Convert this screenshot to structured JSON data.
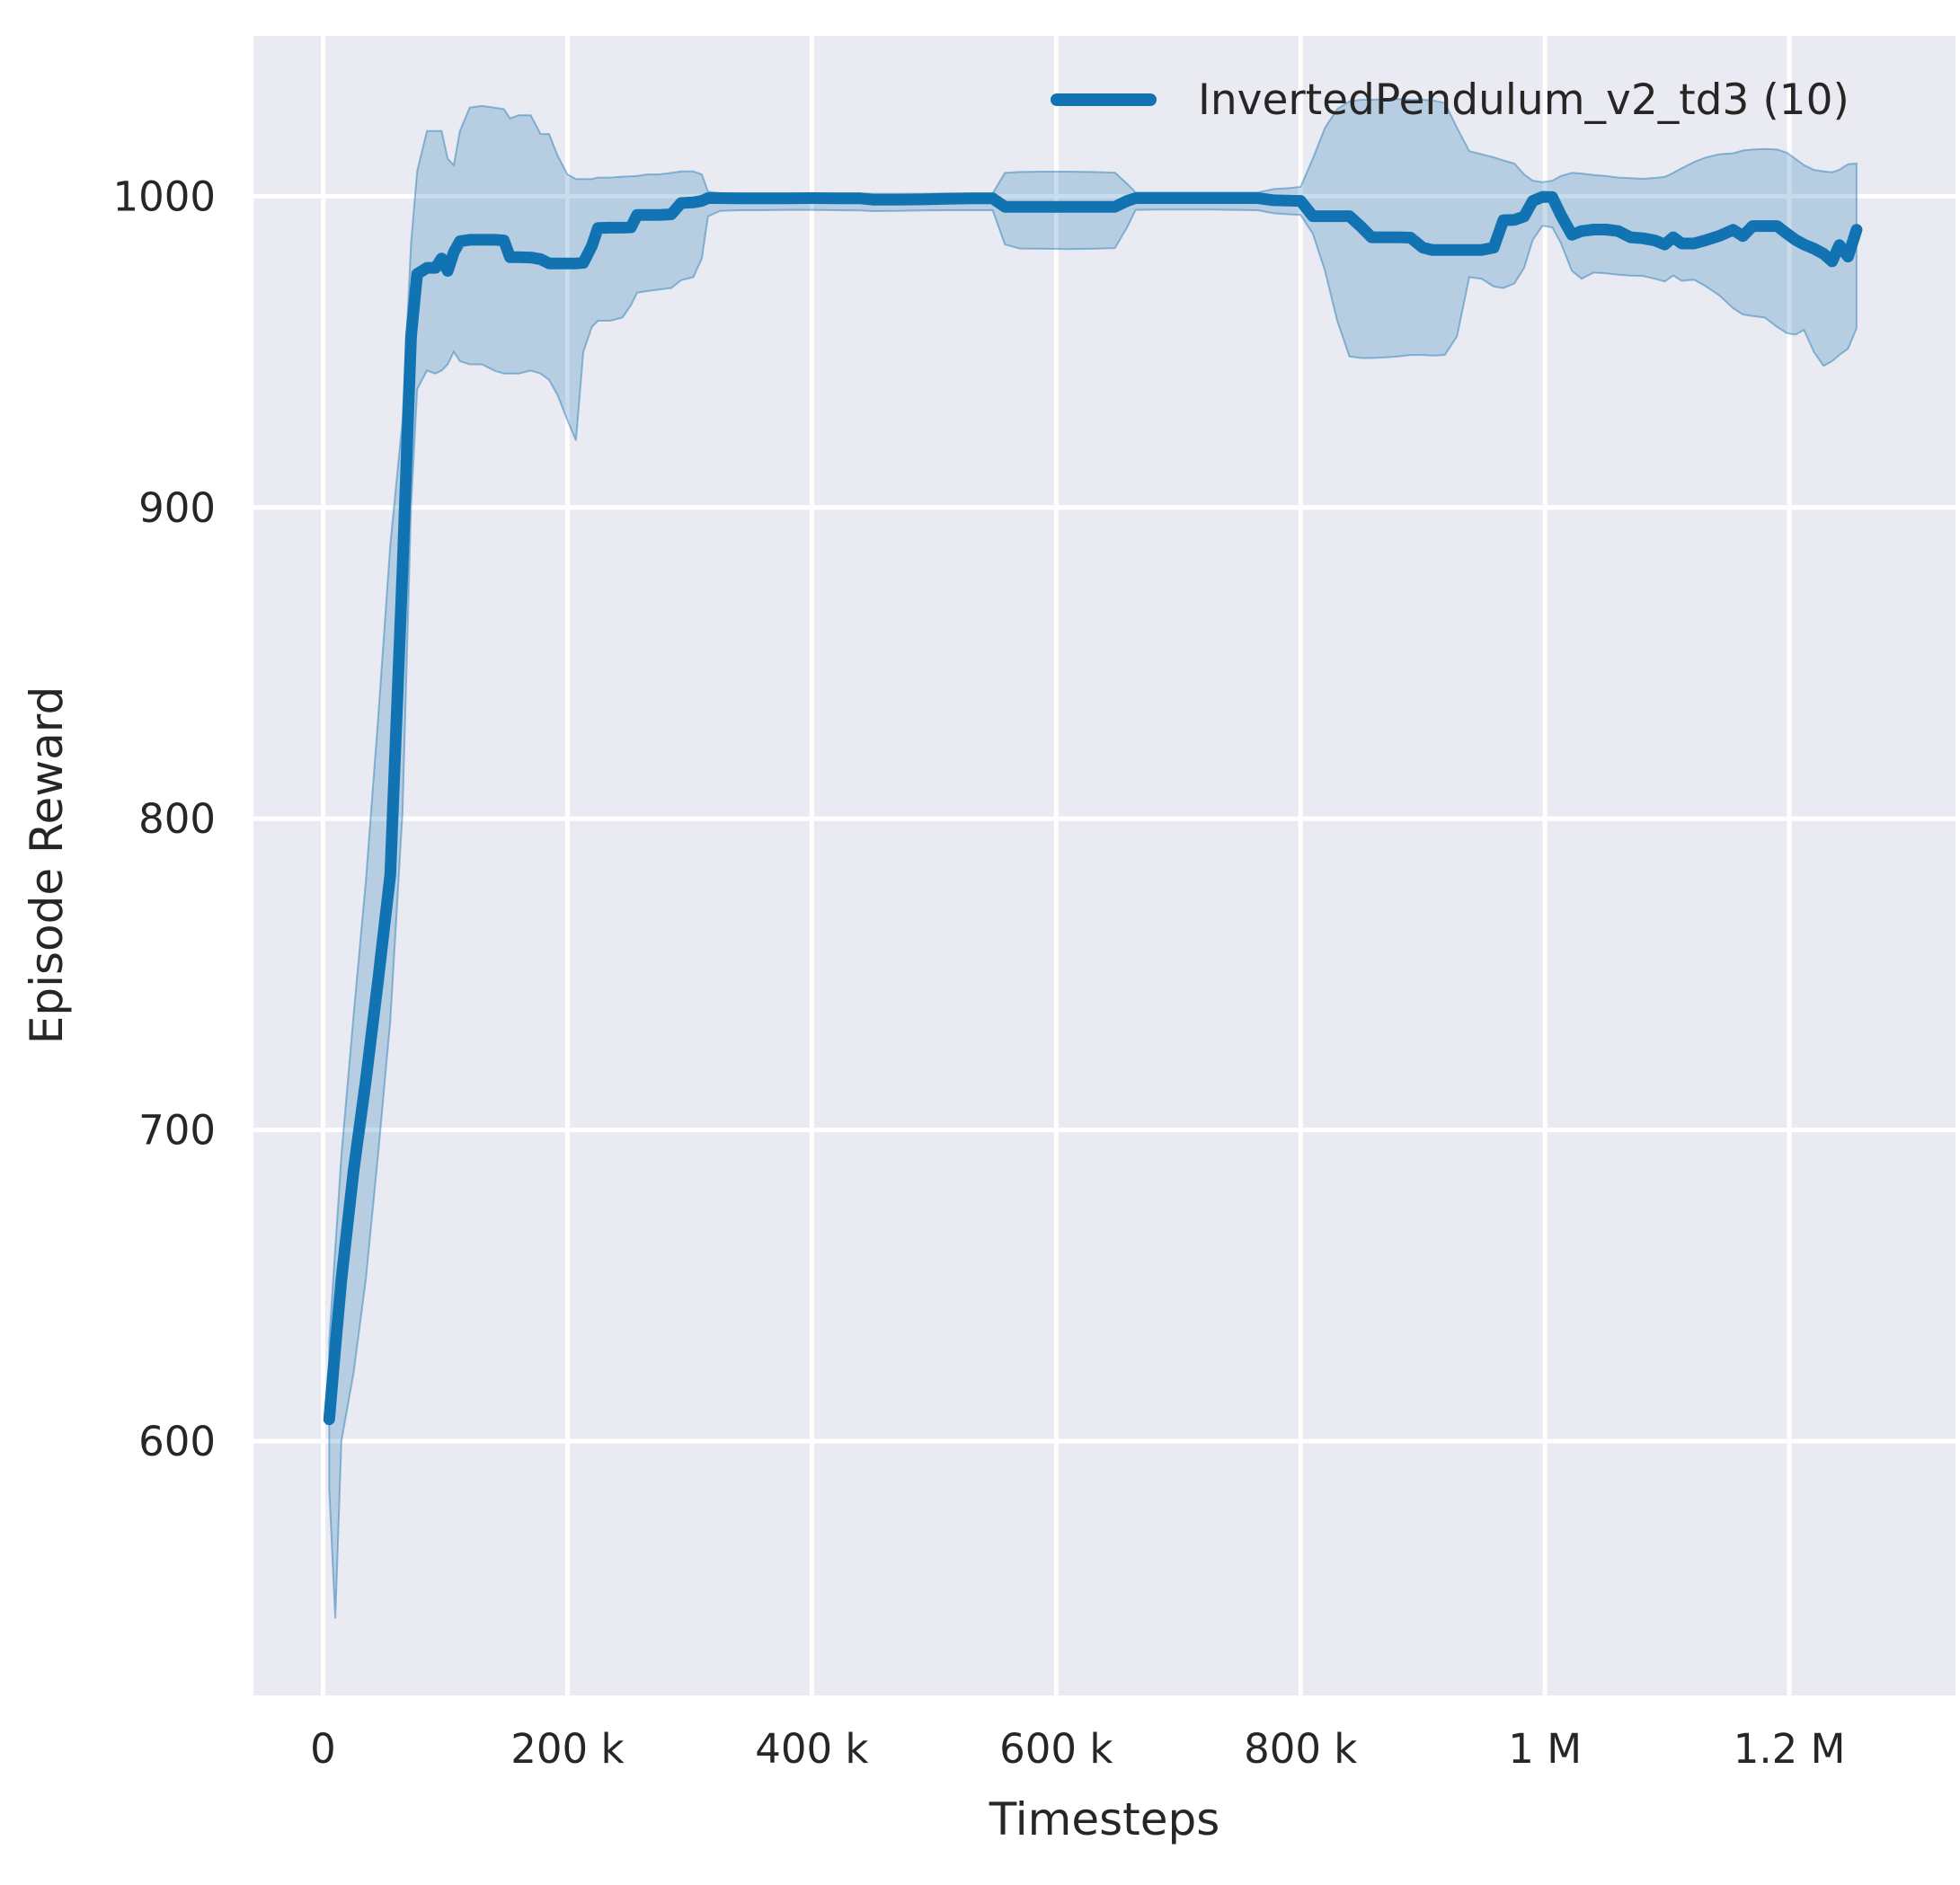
{
  "figure": {
    "xlabel": "Timesteps",
    "ylabel": "Episode Reward",
    "legend_label": "InvertedPendulum_v2_td3 (10)"
  },
  "colors": {
    "line": "#1273b2",
    "band": "rgba(31,119,180,0.25)",
    "plot_bg": "#eaeaf2",
    "grid": "#ffffff",
    "text": "#262626",
    "page_bg": "#ffffff"
  },
  "chart_data": {
    "type": "line",
    "title": "",
    "xlabel": "Timesteps",
    "ylabel": "Episode Reward",
    "legend_position": "upper right",
    "grid": true,
    "xlim": [
      -57000,
      1336000
    ],
    "ylim": [
      518.3,
      1051.5
    ],
    "x_ticks": [
      {
        "value": 0,
        "label": "0"
      },
      {
        "value": 200000,
        "label": "200 k"
      },
      {
        "value": 400000,
        "label": "400 k"
      },
      {
        "value": 600000,
        "label": "600 k"
      },
      {
        "value": 800000,
        "label": "800 k"
      },
      {
        "value": 1000000,
        "label": "1 M"
      },
      {
        "value": 1200000,
        "label": "1.2 M"
      }
    ],
    "y_ticks": [
      {
        "value": 600,
        "label": "600"
      },
      {
        "value": 700,
        "label": "700"
      },
      {
        "value": 800,
        "label": "800"
      },
      {
        "value": 900,
        "label": "900"
      },
      {
        "value": 1000,
        "label": "1000"
      }
    ],
    "series": [
      {
        "name": "InvertedPendulum_v2_td3 (10)",
        "x": [
          5000,
          10000,
          15000,
          25000,
          35000,
          45000,
          55000,
          65000,
          72000,
          77000,
          85000,
          92000,
          97000,
          102000,
          107000,
          112000,
          120000,
          130000,
          140000,
          148000,
          153000,
          160000,
          170000,
          178000,
          185000,
          192000,
          200000,
          207000,
          213000,
          220000,
          225000,
          235000,
          245000,
          252000,
          257000,
          265000,
          275000,
          285000,
          293000,
          303000,
          310000,
          315000,
          325000,
          340000,
          360000,
          380000,
          400000,
          420000,
          440000,
          450000,
          470000,
          490000,
          510000,
          530000,
          548000,
          558000,
          570000,
          590000,
          610000,
          630000,
          648000,
          658000,
          665000,
          685000,
          705000,
          725000,
          745000,
          765000,
          778000,
          790000,
          800000,
          810000,
          820000,
          830000,
          840000,
          850000,
          858000,
          870000,
          880000,
          890000,
          900000,
          908000,
          918000,
          928000,
          938000,
          948000,
          958000,
          966000,
          975000,
          983000,
          990000,
          998000,
          1006000,
          1013000,
          1022000,
          1030000,
          1040000,
          1050000,
          1060000,
          1070000,
          1080000,
          1090000,
          1098000,
          1105000,
          1112000,
          1122000,
          1132000,
          1143000,
          1154000,
          1162000,
          1170000,
          1180000,
          1190000,
          1198000,
          1205000,
          1212000,
          1220000,
          1228000,
          1235000,
          1241000,
          1248000,
          1255000
        ],
        "mean": [
          607,
          630,
          652,
          687,
          716,
          748,
          782,
          880,
          955,
          975,
          977,
          977,
          980,
          976,
          982,
          985.5,
          986,
          986,
          986,
          985.8,
          980.4,
          980.4,
          980.3,
          979.8,
          978.4,
          978.4,
          978.4,
          978.4,
          978.6,
          984,
          989.8,
          989.9,
          989.9,
          990,
          994,
          994,
          994,
          994.2,
          997.8,
          998,
          998.5,
          999.4,
          999.4,
          999.3,
          999.3,
          999.3,
          999.4,
          999.3,
          999.3,
          998.9,
          998.9,
          999,
          999.2,
          999.3,
          999.3,
          996.6,
          996.6,
          996.6,
          996.6,
          996.6,
          996.6,
          998.5,
          999.4,
          999.4,
          999.4,
          999.4,
          999.4,
          999.4,
          998.7,
          998.6,
          998.5,
          993.6,
          993.6,
          993.6,
          993.6,
          990,
          986.8,
          986.8,
          986.8,
          986.7,
          983.5,
          982.7,
          982.7,
          982.7,
          982.7,
          982.7,
          983.5,
          992.3,
          992.4,
          993.5,
          998.5,
          999.8,
          999.7,
          994,
          987.6,
          988.8,
          989.3,
          989.3,
          988.8,
          986.8,
          986.5,
          985.8,
          984.5,
          986.8,
          984.8,
          984.8,
          985.9,
          987.3,
          989.2,
          987.2,
          990.4,
          990.4,
          990.4,
          988,
          986,
          984.5,
          983.2,
          981.5,
          979.1,
          984.3,
          980.6,
          989.2
        ],
        "lower": [
          585,
          543,
          600,
          622,
          652,
          692,
          735,
          802,
          900,
          938,
          944,
          943,
          944,
          946,
          950,
          947,
          946,
          946,
          944,
          943,
          943,
          943,
          944,
          943,
          941,
          936,
          928,
          921.5,
          950,
          958,
          960,
          960,
          961,
          965,
          969,
          969.5,
          970,
          970.5,
          973,
          974,
          980,
          993.5,
          995.3,
          995.5,
          995.5,
          995.6,
          995.6,
          995.5,
          995.4,
          995.2,
          995.3,
          995.4,
          995.5,
          995.5,
          995.5,
          984.5,
          983.2,
          983.1,
          983,
          983.1,
          983.3,
          990,
          995.6,
          995.7,
          995.7,
          995.7,
          995.6,
          995.5,
          994.5,
          994.2,
          994,
          988,
          976,
          960,
          948.5,
          948,
          948,
          948.2,
          948.5,
          949,
          949,
          948.8,
          949,
          955,
          974,
          973.5,
          971,
          970.5,
          972,
          977,
          986,
          990.5,
          990,
          985,
          976,
          973.5,
          975.5,
          975.2,
          974.8,
          974.5,
          974.4,
          973.5,
          972.6,
          974.5,
          972.8,
          973.2,
          971,
          968,
          964,
          962,
          961.5,
          961,
          958,
          956,
          955.5,
          957,
          950,
          945.5,
          947,
          949,
          951,
          957.5
        ],
        "upper": [
          632,
          662,
          692,
          737,
          780,
          832,
          888,
          928,
          985,
          1008,
          1021,
          1021,
          1021,
          1012,
          1010,
          1021,
          1028.5,
          1029,
          1028.5,
          1028,
          1025,
          1026,
          1026,
          1020,
          1020,
          1013,
          1007,
          1005.5,
          1005.5,
          1005.5,
          1006,
          1006,
          1006.3,
          1006.4,
          1006.5,
          1007,
          1007,
          1007.5,
          1008,
          1008,
          1007,
          1001.5,
          1001,
          1000.9,
          1000.9,
          1000.9,
          1000.9,
          1000.9,
          1000.9,
          1000.8,
          1000.8,
          1000.8,
          1000.9,
          1000.9,
          1000.9,
          1007.5,
          1007.8,
          1007.9,
          1007.9,
          1007.8,
          1007.6,
          1004,
          1001.2,
          1001.2,
          1001.2,
          1001.2,
          1001.2,
          1001.2,
          1002.3,
          1002.6,
          1003,
          1012,
          1022,
          1028,
          1030.5,
          1031,
          1031,
          1031.2,
          1031.2,
          1031,
          1031,
          1030.8,
          1030,
          1022,
          1014.5,
          1013.5,
          1012.5,
          1011.5,
          1010.5,
          1007,
          1005,
          1004.5,
          1005,
          1006.5,
          1007.5,
          1007.3,
          1006.8,
          1006.5,
          1006,
          1005.8,
          1005.6,
          1005.9,
          1006.2,
          1007.5,
          1009,
          1011,
          1012.5,
          1013.5,
          1013.8,
          1014.7,
          1015,
          1015.2,
          1015,
          1014,
          1012,
          1010,
          1008.5,
          1008,
          1007.7,
          1008.5,
          1010.3,
          1010.5
        ]
      }
    ]
  }
}
